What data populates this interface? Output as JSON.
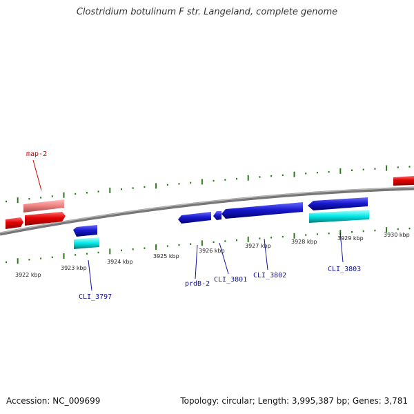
{
  "title": "Clostridium botulinum F str. Langeland, complete genome",
  "footer": {
    "accession": "Accession: NC_009699",
    "summary": "Topology: circular; Length: 3,995,387 bp; Genes: 3,781"
  },
  "colors": {
    "backbone": "#8a8a8a",
    "tick": "#2a7a1a",
    "forward_gene": "#e00000",
    "forward_cds": "#f08080",
    "reverse_gene": "#1a1ad0",
    "reverse_cds": "#00e0e0",
    "label_forward": "#cc0000",
    "label_reverse": "#1010a0"
  },
  "scale_labels": [
    "3922 kbp",
    "3923 kbp",
    "3924 kbp",
    "3925 kbp",
    "3926 kbp",
    "3927 kbp",
    "3928 kbp",
    "3929 kbp",
    "3930 kbp"
  ],
  "gene_labels": [
    {
      "text": "map-2",
      "strand": "forward"
    },
    {
      "text": "CLI_3797",
      "strand": "reverse"
    },
    {
      "text": "prdB-2",
      "strand": "reverse"
    },
    {
      "text": "CLI_3801",
      "strand": "reverse"
    },
    {
      "text": "CLI_3802",
      "strand": "reverse"
    },
    {
      "text": "CLI_3803",
      "strand": "reverse"
    }
  ]
}
